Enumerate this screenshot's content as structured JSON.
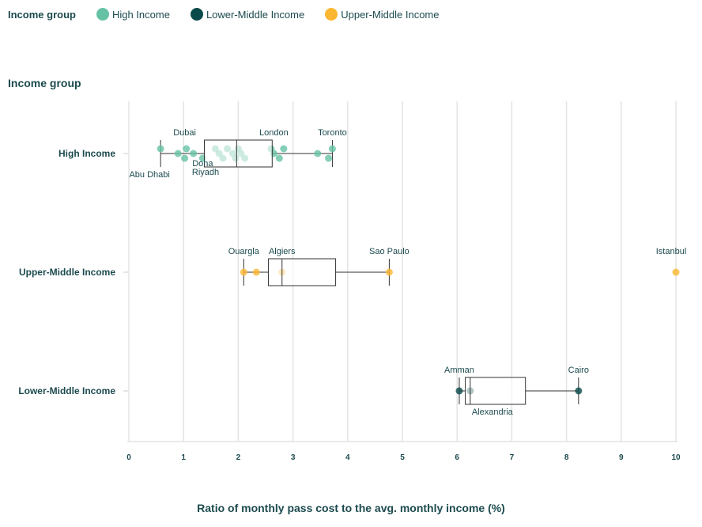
{
  "chart_data": {
    "type": "box",
    "legend": {
      "title": "Income group",
      "placement": "top-left",
      "items": [
        {
          "name": "High Income",
          "color": "#66c2a5"
        },
        {
          "name": "Lower-Middle Income",
          "color": "#0b4a4a"
        },
        {
          "name": "Upper-Middle Income",
          "color": "#fbb731"
        }
      ]
    },
    "ylabel": "Income group",
    "xlabel": "Ratio of monthly pass cost to the avg. monthly income (%)",
    "xlim": [
      0,
      10
    ],
    "xticks": [
      "0",
      "1",
      "2",
      "3",
      "4",
      "5",
      "6",
      "7",
      "8",
      "9",
      "10"
    ],
    "grid": "vertical",
    "groups": [
      {
        "name": "High Income",
        "color": "#66c2a5",
        "box": {
          "whisker_low": 0.58,
          "q1": 1.38,
          "median": 1.97,
          "q3": 2.62,
          "whisker_high": 3.72
        },
        "points": [
          0.58,
          0.9,
          1.02,
          1.05,
          1.18,
          1.35,
          1.58,
          1.65,
          1.72,
          1.8,
          1.9,
          1.95,
          2.0,
          2.05,
          2.12,
          2.6,
          2.65,
          2.75,
          2.83,
          3.45,
          3.65,
          3.72
        ],
        "labels": [
          {
            "text": "Dubai",
            "x": 1.02,
            "pos": "above"
          },
          {
            "text": "London",
            "x": 2.65,
            "pos": "above"
          },
          {
            "text": "Toronto",
            "x": 3.72,
            "pos": "above"
          },
          {
            "text": "Abu Dhabi",
            "x": 0.58,
            "pos": "below"
          },
          {
            "text": "Doha",
            "x": 1.58,
            "pos": "below"
          },
          {
            "text": "Riyadh",
            "x": 1.72,
            "pos": "below2"
          }
        ]
      },
      {
        "name": "Upper-Middle Income",
        "color": "#fbb731",
        "box": {
          "whisker_low": 2.1,
          "q1": 2.55,
          "median": 2.8,
          "q3": 3.78,
          "whisker_high": 4.76
        },
        "points": [
          2.1,
          2.33,
          2.8,
          4.76,
          10.0
        ],
        "labels": [
          {
            "text": "Ouargla",
            "x": 2.1,
            "pos": "above"
          },
          {
            "text": "Algiers",
            "x": 2.8,
            "pos": "above"
          },
          {
            "text": "Sao Paulo",
            "x": 4.76,
            "pos": "above"
          },
          {
            "text": "Istanbul",
            "x": 10.0,
            "pos": "above"
          }
        ]
      },
      {
        "name": "Lower-Middle Income",
        "color": "#0b4a4a",
        "box": {
          "whisker_low": 6.04,
          "q1": 6.15,
          "median": 6.24,
          "q3": 7.25,
          "whisker_high": 8.22
        },
        "points": [
          6.04,
          6.24,
          8.22
        ],
        "labels": [
          {
            "text": "Amman",
            "x": 6.04,
            "pos": "above"
          },
          {
            "text": "Cairo",
            "x": 8.22,
            "pos": "above"
          },
          {
            "text": "Alexandria",
            "x": 6.24,
            "pos": "below"
          }
        ]
      }
    ]
  }
}
